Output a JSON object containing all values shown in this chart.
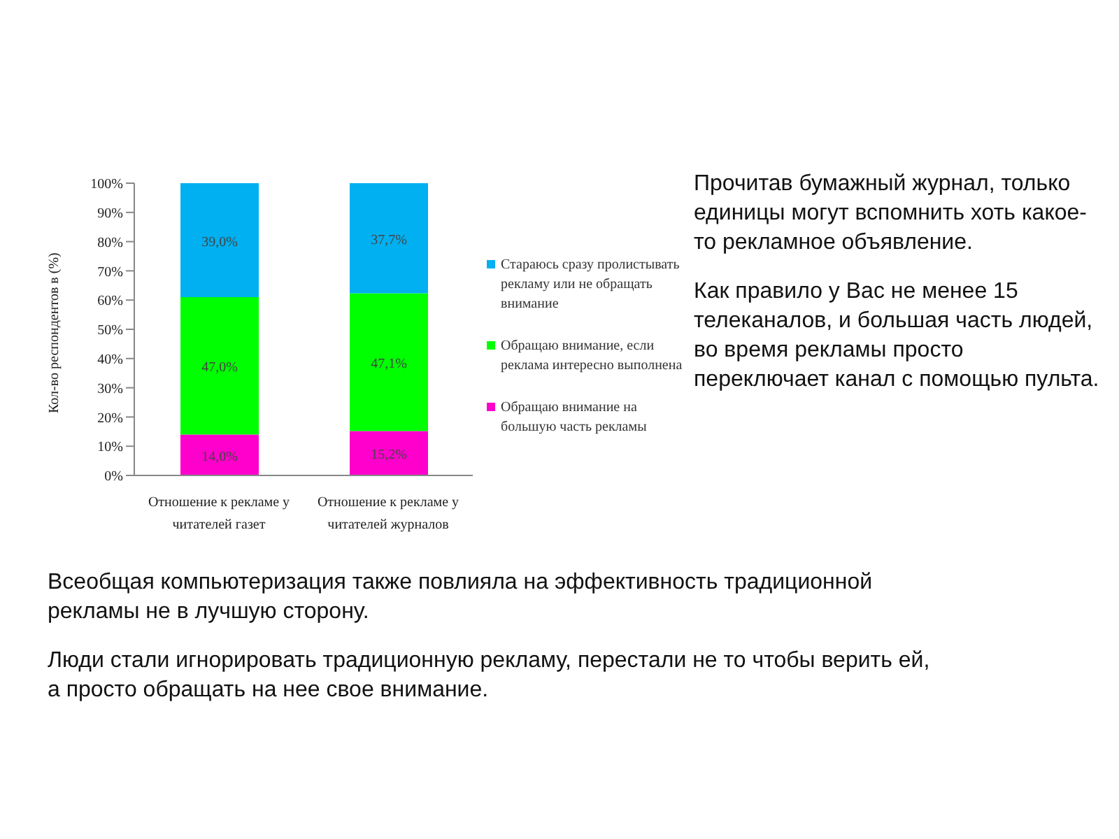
{
  "chart_data": {
    "type": "bar",
    "stacked": true,
    "ylabel": "Кол-во респондентов в (%)",
    "categories": [
      "Отношение к рекламе у читателей газет",
      "Отношение к рекламе у читателей журналов"
    ],
    "series": [
      {
        "name": "Обращаю внимание на большую часть рекламы",
        "color": "#ff00cc",
        "values": [
          14.0,
          15.2
        ],
        "value_labels": [
          "14,0%",
          "15,2%"
        ]
      },
      {
        "name": "Обращаю внимание, если реклама интересно выполнена",
        "color": "#00ff00",
        "values": [
          47.0,
          47.1
        ],
        "value_labels": [
          "47,0%",
          "47,1%"
        ]
      },
      {
        "name": "Стараюсь сразу пролистывать рекламу или не обращать внимание",
        "color": "#00b0f0",
        "values": [
          39.0,
          37.7
        ],
        "value_labels": [
          "39,0%",
          "37,7%"
        ]
      }
    ],
    "ylim": [
      0,
      100
    ],
    "yticks": [
      {
        "value": 0,
        "label": "0%"
      },
      {
        "value": 10,
        "label": "10%"
      },
      {
        "value": 20,
        "label": "20%"
      },
      {
        "value": 30,
        "label": "30%"
      },
      {
        "value": 40,
        "label": "40%"
      },
      {
        "value": 50,
        "label": "50%"
      },
      {
        "value": 60,
        "label": "60%"
      },
      {
        "value": 70,
        "label": "70%"
      },
      {
        "value": 80,
        "label": "80%"
      },
      {
        "value": 90,
        "label": "90%"
      },
      {
        "value": 100,
        "label": "100%"
      }
    ],
    "legend": "right",
    "annotations": [
      "Прочитав бумажный журнал, только единицы могут вспомнить хоть какое-то рекламное объявление.",
      "Как правило у Вас  не менее 15 телеканалов, и большая часть людей, во время рекламы просто переключает канал с помощью пульта.",
      "Всеобщая компьютеризация также повлияла на эффективность традиционной рекламы не в лучшую сторону.",
      "Люди стали игнорировать традиционную рекламу, перестали не то чтобы верить ей, а просто обращать на нее свое внимание."
    ]
  }
}
